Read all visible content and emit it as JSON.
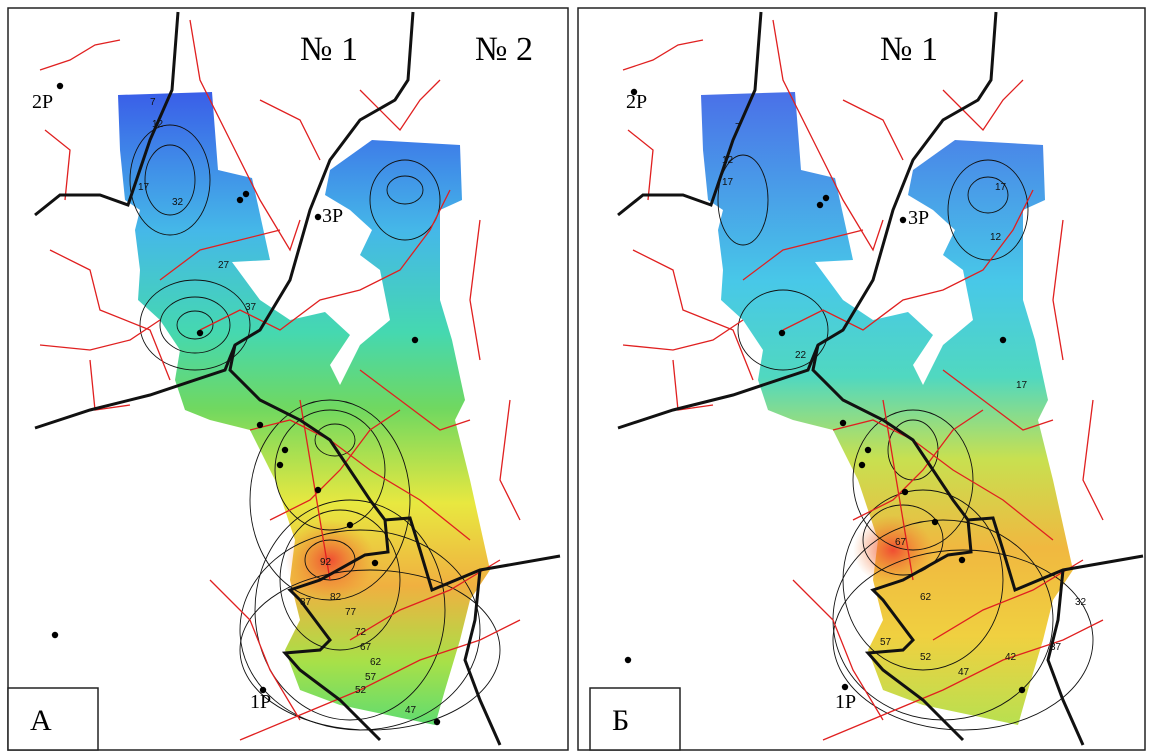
{
  "panels": [
    {
      "label": "А",
      "titles": [
        "№ 1",
        "№ 2"
      ],
      "wells": [
        "2P",
        "3P",
        "1P"
      ],
      "contour_labels": [
        "7",
        "12",
        "17",
        "32",
        "27",
        "37",
        "92",
        "87",
        "82",
        "77",
        "72",
        "67",
        "62",
        "57",
        "52",
        "47"
      ]
    },
    {
      "label": "Б",
      "titles": [
        "№ 1"
      ],
      "wells": [
        "2P",
        "3P",
        "1P"
      ],
      "contour_labels": [
        "7",
        "12",
        "17",
        "17",
        "12",
        "22",
        "17",
        "67",
        "62",
        "57",
        "52",
        "47",
        "42",
        "37",
        "32"
      ]
    }
  ]
}
